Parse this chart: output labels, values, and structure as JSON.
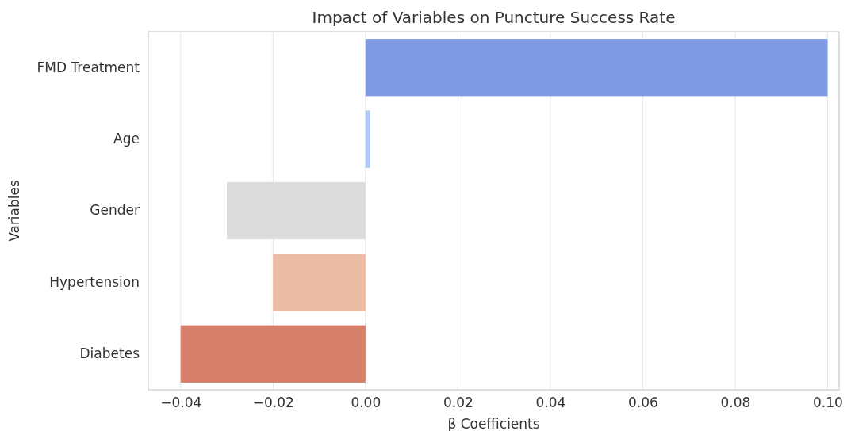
{
  "chart_data": {
    "type": "bar",
    "orientation": "horizontal",
    "title": "Impact of Variables on Puncture Success Rate",
    "xlabel": "β Coefficients",
    "ylabel": "Variables",
    "categories": [
      "FMD Treatment",
      "Age",
      "Gender",
      "Hypertension",
      "Diabetes"
    ],
    "values": [
      0.1,
      0.001,
      -0.03,
      -0.02,
      -0.04
    ],
    "colors": [
      "#7f9ae4",
      "#aec9f7",
      "#dcdcdc",
      "#edbca5",
      "#d6806b"
    ],
    "xlim": [
      -0.047,
      0.1025
    ],
    "xticks": [
      {
        "value": -0.04,
        "label": "−0.04"
      },
      {
        "value": -0.02,
        "label": "−0.02"
      },
      {
        "value": 0,
        "label": "0.00"
      },
      {
        "value": 0.02,
        "label": "0.02"
      },
      {
        "value": 0.04,
        "label": "0.04"
      },
      {
        "value": 0.06,
        "label": "0.06"
      },
      {
        "value": 0.08,
        "label": "0.08"
      },
      {
        "value": 0.1,
        "label": "0.10"
      }
    ],
    "grid": "x"
  }
}
